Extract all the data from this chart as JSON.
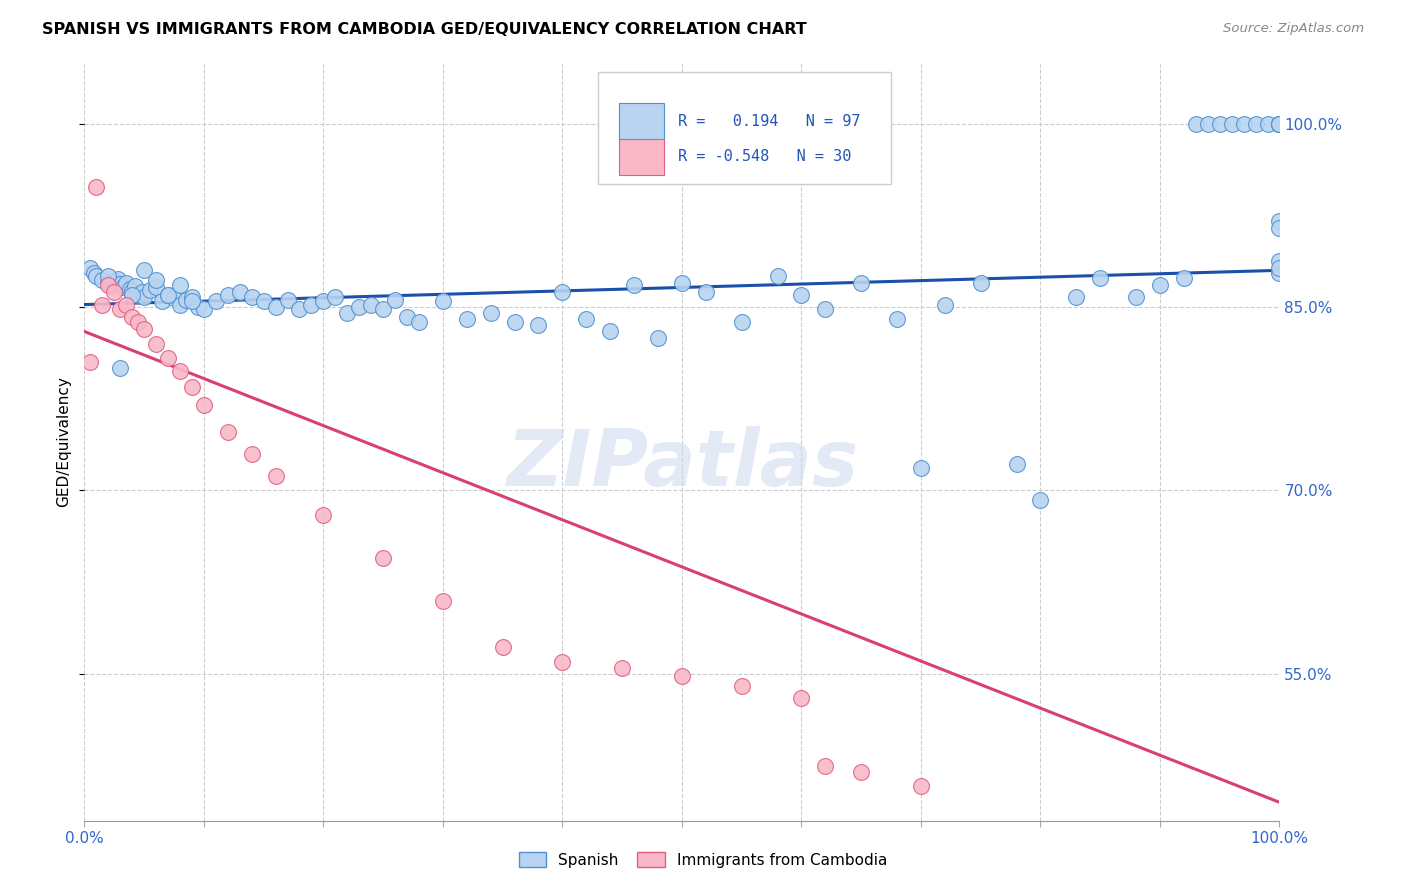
{
  "title": "SPANISH VS IMMIGRANTS FROM CAMBODIA GED/EQUIVALENCY CORRELATION CHART",
  "source": "Source: ZipAtlas.com",
  "ylabel": "GED/Equivalency",
  "ytick_values": [
    0.55,
    0.7,
    0.85,
    1.0
  ],
  "xmin": 0.0,
  "xmax": 1.0,
  "ymin": 0.43,
  "ymax": 1.05,
  "r_spanish": 0.194,
  "n_spanish": 97,
  "r_cambodia": -0.548,
  "n_cambodia": 30,
  "blue_fill": "#b8d4f0",
  "blue_edge": "#5090d0",
  "pink_fill": "#f8b8c8",
  "pink_edge": "#e06080",
  "line_blue": "#1a4faa",
  "line_pink": "#d84070",
  "blue_line_start_y": 0.852,
  "blue_line_end_y": 0.88,
  "pink_line_start_y": 0.83,
  "pink_line_end_y": 0.445,
  "watermark": "ZIPatlas",
  "legend_r1": "R =   0.194   N = 97",
  "legend_r2": "R = -0.548   N = 30",
  "legend_label1": "Spanish",
  "legend_label2": "Immigrants from Cambodia",
  "xtick_positions": [
    0.0,
    0.1,
    0.2,
    0.3,
    0.4,
    0.5,
    0.6,
    0.7,
    0.8,
    0.9,
    1.0
  ],
  "spanish_x": [
    0.005,
    0.008,
    0.01,
    0.015,
    0.02,
    0.022,
    0.025,
    0.028,
    0.03,
    0.032,
    0.035,
    0.038,
    0.04,
    0.042,
    0.045,
    0.048,
    0.05,
    0.055,
    0.06,
    0.065,
    0.07,
    0.075,
    0.08,
    0.085,
    0.09,
    0.095,
    0.1,
    0.11,
    0.12,
    0.13,
    0.14,
    0.15,
    0.16,
    0.17,
    0.18,
    0.19,
    0.2,
    0.21,
    0.22,
    0.23,
    0.24,
    0.25,
    0.26,
    0.27,
    0.28,
    0.3,
    0.32,
    0.34,
    0.36,
    0.38,
    0.4,
    0.42,
    0.44,
    0.46,
    0.48,
    0.5,
    0.52,
    0.55,
    0.58,
    0.6,
    0.62,
    0.65,
    0.68,
    0.7,
    0.72,
    0.75,
    0.78,
    0.8,
    0.83,
    0.85,
    0.88,
    0.9,
    0.92,
    0.93,
    0.94,
    0.95,
    0.96,
    0.97,
    0.98,
    0.99,
    1.0,
    1.0,
    1.0,
    1.0,
    1.0,
    1.0,
    1.0,
    1.0,
    1.0,
    0.02,
    0.03,
    0.04,
    0.05,
    0.06,
    0.07,
    0.08,
    0.09
  ],
  "spanish_y": [
    0.882,
    0.878,
    0.875,
    0.872,
    0.87,
    0.868,
    0.871,
    0.873,
    0.869,
    0.866,
    0.87,
    0.865,
    0.863,
    0.867,
    0.86,
    0.862,
    0.858,
    0.864,
    0.866,
    0.855,
    0.86,
    0.857,
    0.852,
    0.856,
    0.858,
    0.85,
    0.848,
    0.855,
    0.86,
    0.862,
    0.858,
    0.855,
    0.85,
    0.856,
    0.848,
    0.852,
    0.855,
    0.858,
    0.845,
    0.85,
    0.852,
    0.848,
    0.856,
    0.842,
    0.838,
    0.855,
    0.84,
    0.845,
    0.838,
    0.835,
    0.862,
    0.84,
    0.83,
    0.868,
    0.825,
    0.87,
    0.862,
    0.838,
    0.875,
    0.86,
    0.848,
    0.87,
    0.84,
    0.718,
    0.852,
    0.87,
    0.722,
    0.692,
    0.858,
    0.874,
    0.858,
    0.868,
    0.874,
    1.0,
    1.0,
    1.0,
    1.0,
    1.0,
    1.0,
    1.0,
    1.0,
    1.0,
    1.0,
    1.0,
    0.878,
    0.92,
    0.915,
    0.888,
    0.882,
    0.875,
    0.8,
    0.86,
    0.88,
    0.872,
    0.86,
    0.868,
    0.855
  ],
  "cambodia_x": [
    0.005,
    0.01,
    0.015,
    0.02,
    0.025,
    0.03,
    0.035,
    0.04,
    0.045,
    0.05,
    0.06,
    0.07,
    0.08,
    0.09,
    0.1,
    0.12,
    0.14,
    0.16,
    0.2,
    0.25,
    0.3,
    0.35,
    0.4,
    0.45,
    0.5,
    0.55,
    0.6,
    0.62,
    0.65,
    0.7
  ],
  "cambodia_y": [
    0.805,
    0.948,
    0.852,
    0.868,
    0.862,
    0.848,
    0.852,
    0.842,
    0.838,
    0.832,
    0.82,
    0.808,
    0.798,
    0.785,
    0.77,
    0.748,
    0.73,
    0.712,
    0.68,
    0.645,
    0.61,
    0.572,
    0.56,
    0.555,
    0.548,
    0.54,
    0.53,
    0.475,
    0.47,
    0.458
  ]
}
